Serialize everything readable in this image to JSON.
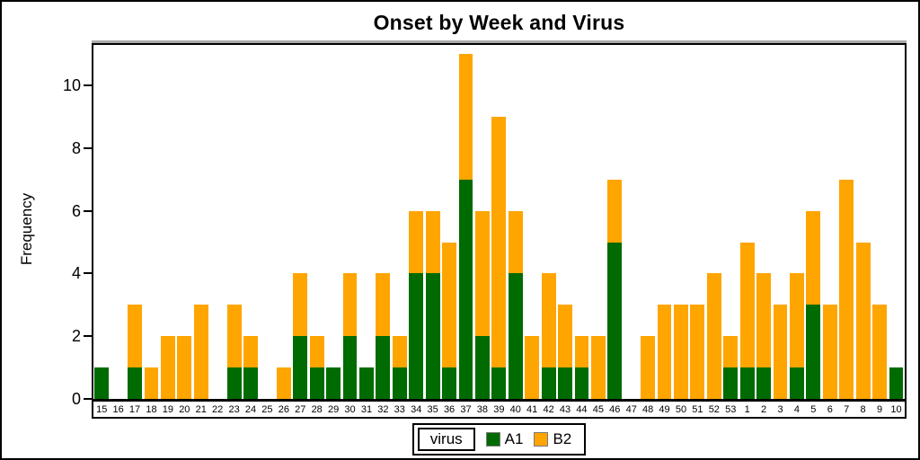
{
  "title": "Onset by Week and Virus",
  "yaxis": {
    "label": "Frequency",
    "ticks": [
      0,
      2,
      4,
      6,
      8,
      10
    ]
  },
  "legend": {
    "title": "virus",
    "items": [
      {
        "name": "A1",
        "color": "#006B00"
      },
      {
        "name": "B2",
        "color": "#FFA500"
      }
    ]
  },
  "colors": {
    "a1_green": "#006B00",
    "b2_orange": "#FFA500",
    "axis": "#000000",
    "frame_shadow": "#AAAAAA"
  },
  "chart_data": {
    "type": "bar",
    "stacked": true,
    "title": "Onset by Week and Virus",
    "xlabel": "",
    "ylabel": "Frequency",
    "ylim": [
      0,
      11.3
    ],
    "yticks": [
      0,
      2,
      4,
      6,
      8,
      10
    ],
    "grid": false,
    "legend_position": "bottom",
    "legend_title": "virus",
    "categories": [
      "15",
      "16",
      "17",
      "18",
      "19",
      "20",
      "21",
      "22",
      "23",
      "24",
      "25",
      "26",
      "27",
      "28",
      "29",
      "30",
      "31",
      "32",
      "33",
      "34",
      "35",
      "36",
      "37",
      "38",
      "39",
      "40",
      "41",
      "42",
      "43",
      "44",
      "45",
      "46",
      "47",
      "48",
      "49",
      "50",
      "51",
      "52",
      "53",
      "1",
      "2",
      "3",
      "4",
      "5",
      "6",
      "7",
      "8",
      "9",
      "10"
    ],
    "series": [
      {
        "name": "A1",
        "color": "#006B00",
        "values": [
          1,
          0,
          1,
          0,
          0,
          0,
          0,
          0,
          1,
          1,
          0,
          0,
          2,
          1,
          1,
          2,
          1,
          2,
          1,
          4,
          4,
          1,
          7,
          2,
          1,
          4,
          0,
          1,
          1,
          1,
          0,
          5,
          0,
          0,
          0,
          0,
          0,
          0,
          1,
          1,
          1,
          0,
          1,
          3,
          0,
          0,
          0,
          0,
          1
        ]
      },
      {
        "name": "B2",
        "color": "#FFA500",
        "values": [
          0,
          0,
          2,
          1,
          2,
          2,
          3,
          0,
          2,
          1,
          0,
          1,
          2,
          1,
          0,
          2,
          0,
          2,
          1,
          2,
          2,
          4,
          4,
          4,
          8,
          2,
          2,
          3,
          2,
          1,
          2,
          2,
          0,
          2,
          3,
          3,
          3,
          4,
          1,
          4,
          3,
          3,
          3,
          3,
          3,
          7,
          5,
          3,
          0
        ]
      }
    ]
  }
}
